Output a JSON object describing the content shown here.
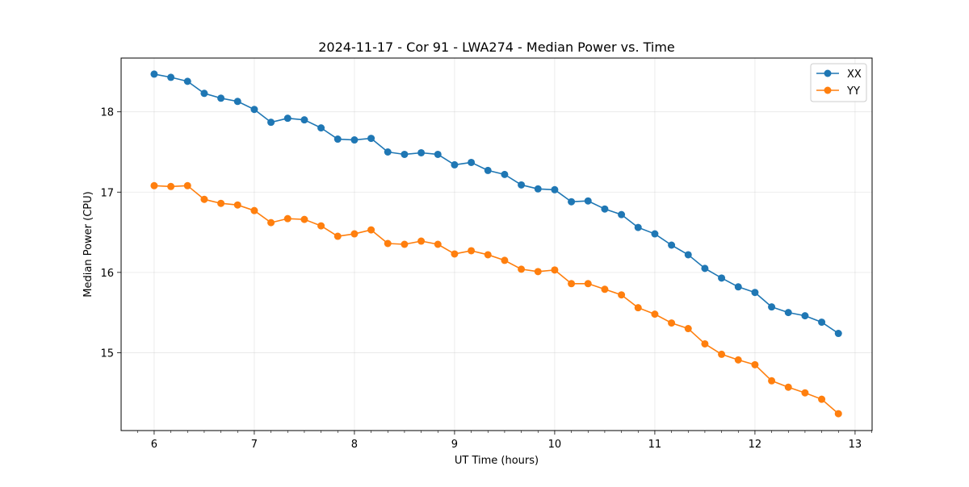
{
  "chart_data": {
    "type": "line",
    "title": "2024-11-17 - Cor 91 - LWA274 - Median Power vs. Time",
    "xlabel": "UT Time (hours)",
    "ylabel": "Median Power (CPU)",
    "xlim": [
      5.67,
      13.17
    ],
    "ylim": [
      14.03,
      18.67
    ],
    "xticks": [
      6,
      7,
      8,
      9,
      10,
      11,
      12,
      13
    ],
    "yticks": [
      15,
      16,
      17,
      18
    ],
    "grid": true,
    "legend_position": "top-right",
    "x": [
      6.0,
      6.1667,
      6.3333,
      6.5,
      6.6667,
      6.8333,
      7.0,
      7.1667,
      7.3333,
      7.5,
      7.6667,
      7.8333,
      8.0,
      8.1667,
      8.3333,
      8.5,
      8.6667,
      8.8333,
      9.0,
      9.1667,
      9.3333,
      9.5,
      9.6667,
      9.8333,
      10.0,
      10.1667,
      10.3333,
      10.5,
      10.6667,
      10.8333,
      11.0,
      11.1667,
      11.3333,
      11.5,
      11.6667,
      11.8333,
      12.0,
      12.1667,
      12.3333,
      12.5,
      12.6667,
      12.8333
    ],
    "series": [
      {
        "name": "XX",
        "color": "#1f77b4",
        "values": [
          18.47,
          18.43,
          18.38,
          18.23,
          18.17,
          18.13,
          18.03,
          17.87,
          17.92,
          17.9,
          17.8,
          17.66,
          17.65,
          17.67,
          17.5,
          17.47,
          17.49,
          17.47,
          17.34,
          17.37,
          17.27,
          17.22,
          17.09,
          17.04,
          17.03,
          16.88,
          16.89,
          16.79,
          16.72,
          16.56,
          16.48,
          16.34,
          16.22,
          16.05,
          15.93,
          15.82,
          15.75,
          15.57,
          15.5,
          15.46,
          15.38,
          15.24
        ]
      },
      {
        "name": "YY",
        "color": "#ff7f0e",
        "values": [
          17.08,
          17.07,
          17.08,
          16.91,
          16.86,
          16.84,
          16.77,
          16.62,
          16.67,
          16.66,
          16.58,
          16.45,
          16.48,
          16.53,
          16.36,
          16.35,
          16.39,
          16.35,
          16.23,
          16.27,
          16.22,
          16.15,
          16.04,
          16.01,
          16.03,
          15.86,
          15.86,
          15.79,
          15.72,
          15.56,
          15.48,
          15.37,
          15.3,
          15.11,
          14.98,
          14.91,
          14.85,
          14.65,
          14.57,
          14.5,
          14.42,
          14.24
        ]
      }
    ]
  }
}
